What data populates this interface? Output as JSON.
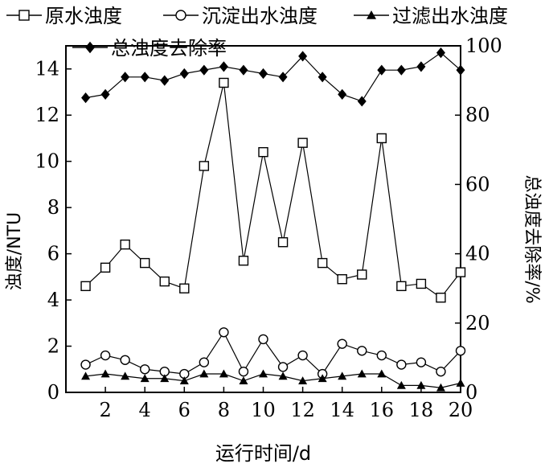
{
  "chart_data": {
    "type": "line",
    "xlabel": "运行时间/d",
    "ylabel_left": "浊度/NTU",
    "ylabel_right": "总浊度去除率/%",
    "x": [
      1,
      2,
      3,
      4,
      5,
      6,
      7,
      8,
      9,
      10,
      11,
      12,
      13,
      14,
      15,
      16,
      17,
      18,
      19,
      20
    ],
    "x_ticks": [
      2,
      4,
      6,
      8,
      10,
      12,
      14,
      16,
      18,
      20
    ],
    "xlim": [
      0,
      20
    ],
    "y_left_lim": [
      0,
      15
    ],
    "y_left_ticks": [
      0,
      2,
      4,
      6,
      8,
      10,
      12,
      14
    ],
    "y_right_lim": [
      0,
      100
    ],
    "y_right_ticks": [
      0,
      20,
      40,
      60,
      80,
      100
    ],
    "grid": false,
    "legend_position": "top",
    "series": [
      {
        "name": "原水浊度",
        "axis": "left",
        "marker": "square-open",
        "values": [
          4.6,
          5.4,
          6.4,
          5.6,
          4.8,
          4.5,
          9.8,
          13.4,
          5.7,
          10.4,
          6.5,
          10.8,
          5.6,
          4.9,
          5.1,
          11.0,
          4.6,
          4.7,
          4.1,
          5.2
        ]
      },
      {
        "name": "沉淀出水浊度",
        "axis": "left",
        "marker": "circle-open",
        "values": [
          1.2,
          1.6,
          1.4,
          1.0,
          0.9,
          0.8,
          1.3,
          2.6,
          0.9,
          2.3,
          1.1,
          1.6,
          0.8,
          2.1,
          1.8,
          1.6,
          1.2,
          1.3,
          0.9,
          1.8
        ]
      },
      {
        "name": "过滤出水浊度",
        "axis": "left",
        "marker": "triangle-filled",
        "values": [
          0.7,
          0.8,
          0.7,
          0.6,
          0.6,
          0.5,
          0.8,
          0.8,
          0.5,
          0.8,
          0.7,
          0.5,
          0.6,
          0.7,
          0.8,
          0.8,
          0.3,
          0.3,
          0.2,
          0.4
        ]
      },
      {
        "name": "总浊度去除率",
        "axis": "right",
        "marker": "diamond-filled",
        "values": [
          85,
          86,
          91,
          91,
          90,
          92,
          93,
          94,
          93,
          92,
          91,
          97,
          91,
          86,
          84,
          93,
          93,
          94,
          98,
          93
        ]
      }
    ]
  }
}
